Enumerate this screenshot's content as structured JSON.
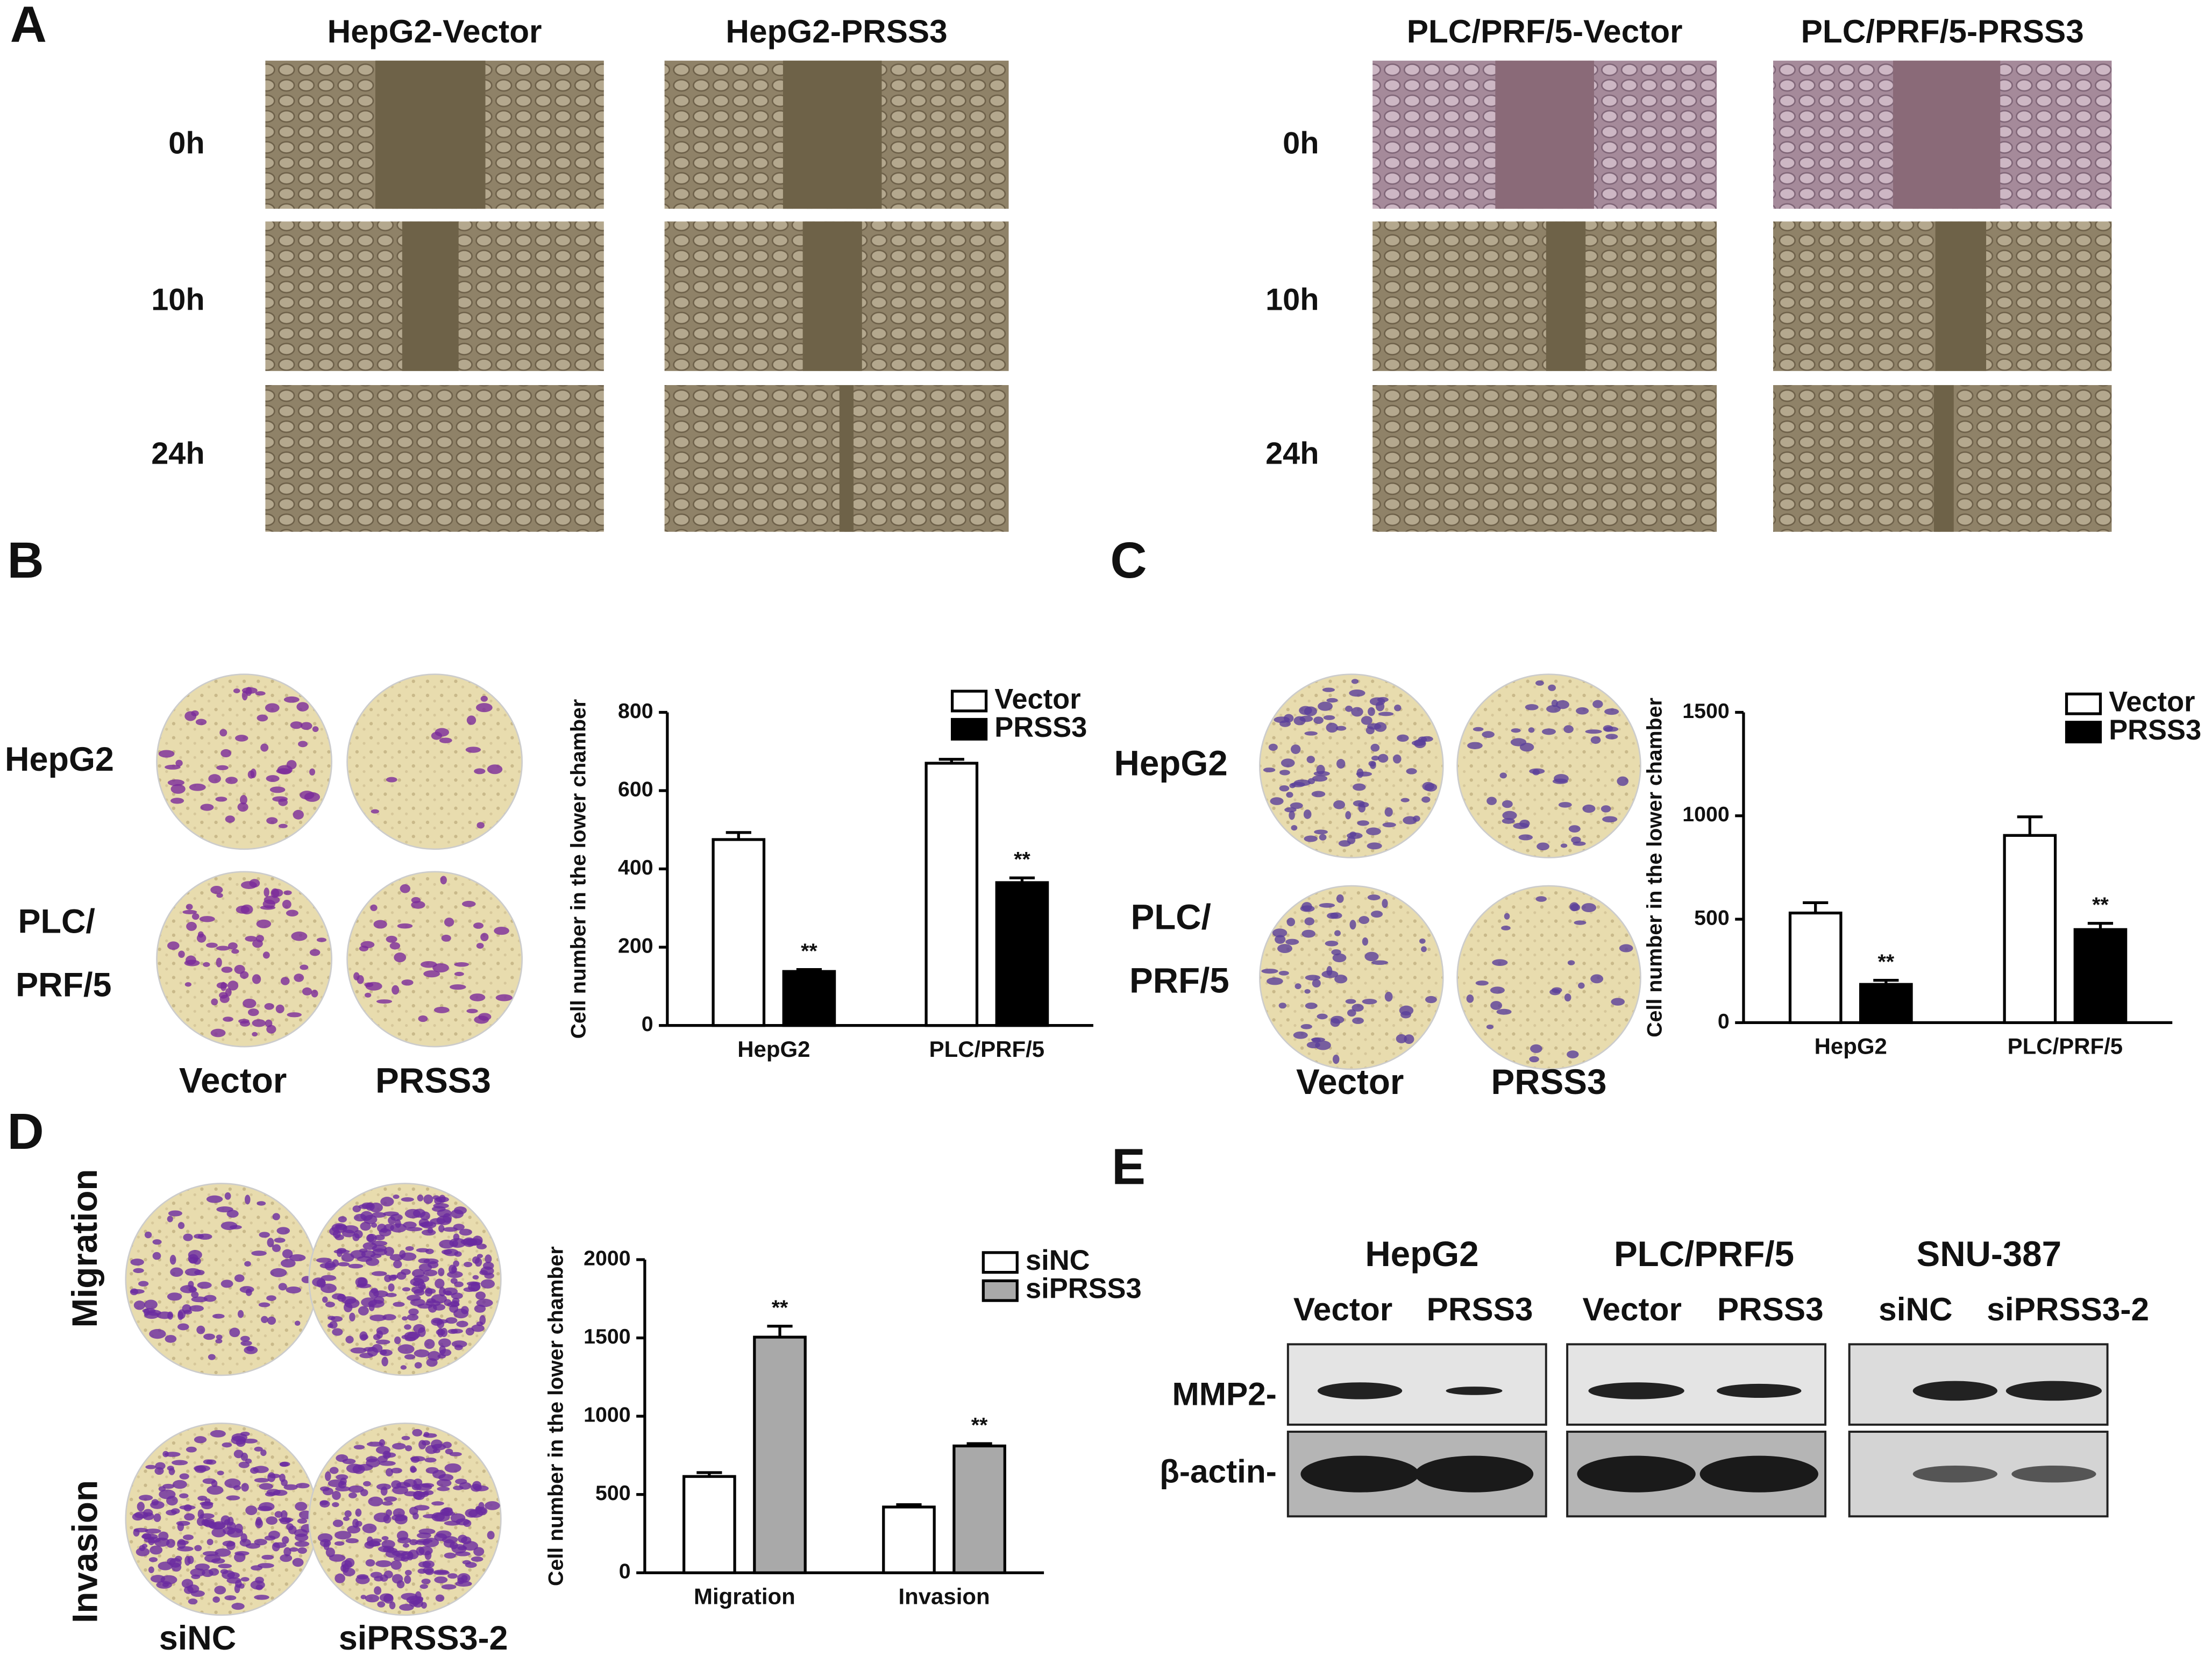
{
  "figure": {
    "panel_labels": [
      "A",
      "B",
      "C",
      "D",
      "E"
    ],
    "panel_a": {
      "columns": [
        "HepG2-Vector",
        "HepG2-PRSS3",
        "PLC/PRF/5-Vector",
        "PLC/PRF/5-PRSS3"
      ],
      "rows": [
        "0h",
        "10h",
        "24h"
      ]
    },
    "panel_b": {
      "rows": [
        "HepG2",
        "PLC/",
        "PRF/5"
      ],
      "columns": [
        "Vector",
        "PRSS3"
      ]
    },
    "panel_c": {
      "rows": [
        "HepG2",
        "PLC/",
        "PRF/5"
      ],
      "columns": [
        "Vector",
        "PRSS3"
      ]
    },
    "panel_d": {
      "rows": [
        "Migration",
        "Invasion"
      ],
      "columns": [
        "siNC",
        "siPRSS3-2"
      ]
    },
    "panel_e": {
      "groups": [
        {
          "title": "HepG2",
          "lanes": [
            "Vector",
            "PRSS3"
          ]
        },
        {
          "title": "PLC/PRF/5",
          "lanes": [
            "Vector",
            "PRSS3"
          ]
        },
        {
          "title": "SNU-387",
          "lanes": [
            "siNC",
            "siPRSS3-2"
          ]
        }
      ],
      "rows": [
        "MMP2-",
        "β-actin-"
      ]
    }
  },
  "chart_data": [
    {
      "type": "bar",
      "y_label": "Cell number in the lower chamber",
      "categories": [
        "HepG2",
        "PLC/PRF/5"
      ],
      "series": [
        {
          "name": "Vector",
          "color": "#ffffff",
          "values": [
            475,
            670
          ],
          "errors": [
            18,
            10
          ]
        },
        {
          "name": "PRSS3",
          "color": "#000000",
          "values": [
            138,
            365
          ],
          "errors": [
            5,
            12
          ],
          "significance": [
            "**",
            "**"
          ]
        }
      ],
      "ylim": [
        0,
        800
      ],
      "yticks": [
        0,
        200,
        400,
        600,
        800
      ]
    },
    {
      "type": "bar",
      "y_label": "Cell number in the lower chamber",
      "categories": [
        "HepG2",
        "PLC/PRF/5"
      ],
      "series": [
        {
          "name": "Vector",
          "color": "#ffffff",
          "values": [
            530,
            905
          ],
          "errors": [
            50,
            90
          ]
        },
        {
          "name": "PRSS3",
          "color": "#000000",
          "values": [
            185,
            450
          ],
          "errors": [
            20,
            30
          ],
          "significance": [
            "**",
            "**"
          ]
        }
      ],
      "ylim": [
        0,
        1500
      ],
      "yticks": [
        0,
        500,
        1000,
        1500
      ]
    },
    {
      "type": "bar",
      "y_label": "Cell number in the lower chamber",
      "categories": [
        "Migration",
        "Invasion"
      ],
      "series": [
        {
          "name": "siNC",
          "color": "#ffffff",
          "values": [
            615,
            420
          ],
          "errors": [
            25,
            15
          ]
        },
        {
          "name": "siPRSS3",
          "color": "#a9a9a9",
          "values": [
            1505,
            810
          ],
          "errors": [
            70,
            15
          ],
          "significance": [
            "**",
            "**"
          ]
        }
      ],
      "ylim": [
        0,
        2000
      ],
      "yticks": [
        0,
        500,
        1000,
        1500,
        2000
      ]
    }
  ]
}
